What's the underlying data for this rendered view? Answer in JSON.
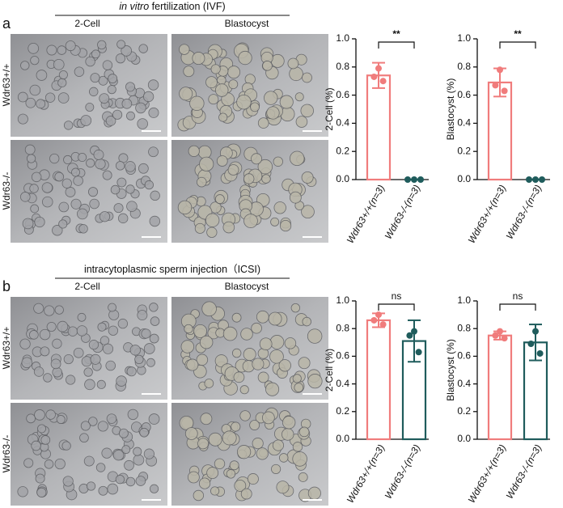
{
  "panels": [
    {
      "letter": "a",
      "header_italic": "in vitro",
      "header": " fertilization (IVF)",
      "columns": [
        "2-Cell",
        "Blastocyst"
      ],
      "rows": [
        "Wdr63+/+",
        "Wdr63-/-"
      ]
    },
    {
      "letter": "b",
      "header": "intracytoplasmic sperm injection（ICSI)",
      "columns": [
        "2-Cell",
        "Blastocyst"
      ],
      "rows": [
        "Wdr63+/+",
        "Wdr63-/-"
      ]
    }
  ],
  "chart_data": [
    {
      "type": "bar",
      "ylabel": "2-Cell (%)",
      "categories": [
        "Wdr63+/+(n=3)",
        "Wdr63-/-(n=3)"
      ],
      "values": [
        0.74,
        0
      ],
      "errors": [
        0.09,
        0
      ],
      "points": [
        [
          0.79,
          0.73,
          0.7
        ],
        [
          0,
          0,
          0
        ]
      ],
      "colors": [
        "#f07c7c",
        "#1f5c5c"
      ],
      "significance": "**",
      "ylim": [
        0,
        1
      ],
      "yticks": [
        {
          "value": 0,
          "label": "0.0"
        },
        0.2,
        0.4,
        0.6,
        0.8,
        {
          "value": 1,
          "label": "1.0"
        }
      ]
    },
    {
      "type": "bar",
      "ylabel": "Blastocyst (%)",
      "categories": [
        "Wdr63+/+(n=3)",
        "Wdr63-/-(n=3)"
      ],
      "values": [
        0.69,
        0
      ],
      "errors": [
        0.1,
        0
      ],
      "points": [
        [
          0.78,
          0.67,
          0.63
        ],
        [
          0,
          0,
          0
        ]
      ],
      "colors": [
        "#f07c7c",
        "#1f5c5c"
      ],
      "significance": "**",
      "ylim": [
        0,
        1
      ],
      "yticks": [
        {
          "value": 0,
          "label": "0.0"
        },
        0.2,
        0.4,
        0.6,
        0.8,
        {
          "value": 1,
          "label": "1.0"
        }
      ]
    },
    {
      "type": "bar",
      "ylabel": "2-Cell (%)",
      "categories": [
        "Wdr63+/+(n=3)",
        "Wdr63-/-(n=3)"
      ],
      "values": [
        0.86,
        0.71
      ],
      "errors": [
        0.05,
        0.15
      ],
      "points": [
        [
          0.9,
          0.86,
          0.83
        ],
        [
          0.78,
          0.75,
          0.63
        ]
      ],
      "colors": [
        "#f07c7c",
        "#1f5c5c"
      ],
      "significance": "ns",
      "ylim": [
        0,
        1
      ],
      "yticks": [
        {
          "value": 0,
          "label": "0.0"
        },
        0.2,
        0.4,
        0.6,
        0.8,
        {
          "value": 1,
          "label": "1.0"
        }
      ]
    },
    {
      "type": "bar",
      "ylabel": "Blastocyst (%)",
      "categories": [
        "Wdr63+/+(n=3)",
        "Wdr63-/-(n=3)"
      ],
      "values": [
        0.75,
        0.7
      ],
      "errors": [
        0.03,
        0.13
      ],
      "points": [
        [
          0.78,
          0.75,
          0.73
        ],
        [
          0.78,
          0.69,
          0.62
        ]
      ],
      "colors": [
        "#f07c7c",
        "#1f5c5c"
      ],
      "significance": "ns",
      "ylim": [
        0,
        1
      ],
      "yticks": [
        {
          "value": 0,
          "label": "0.0"
        },
        0.2,
        0.4,
        0.6,
        0.8,
        {
          "value": 1,
          "label": "1.0"
        }
      ]
    }
  ]
}
